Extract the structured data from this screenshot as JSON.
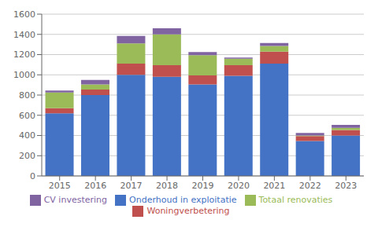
{
  "chart_data": {
    "type": "bar",
    "stacked": true,
    "categories": [
      "2015",
      "2016",
      "2017",
      "2018",
      "2019",
      "2020",
      "2021",
      "2022",
      "2023"
    ],
    "series": [
      {
        "name": "Onderhoud in exploitatie",
        "color": "#4472C4",
        "values": [
          620,
          800,
          1000,
          980,
          905,
          990,
          1110,
          345,
          400
        ]
      },
      {
        "name": "Woningverbetering",
        "color": "#C0504D",
        "values": [
          50,
          55,
          110,
          115,
          90,
          105,
          120,
          50,
          55
        ]
      },
      {
        "name": "Totaal renovaties",
        "color": "#9BBB59",
        "values": [
          155,
          50,
          200,
          305,
          200,
          65,
          55,
          5,
          20
        ]
      },
      {
        "name": "CV investering",
        "color": "#8064A2",
        "values": [
          20,
          45,
          75,
          60,
          30,
          10,
          30,
          25,
          30
        ]
      }
    ],
    "ylim": [
      0,
      1600
    ],
    "yticks": [
      0,
      200,
      400,
      600,
      800,
      1000,
      1200,
      1400,
      1600
    ],
    "grid": true,
    "legend": "bottom"
  }
}
